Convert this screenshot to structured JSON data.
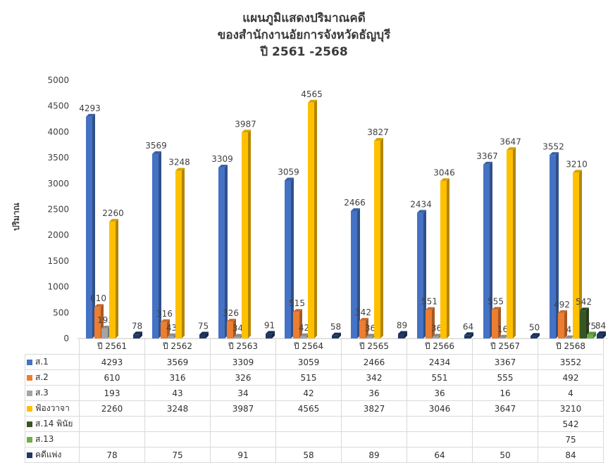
{
  "chart_data": {
    "type": "bar",
    "title_lines": [
      "แผนภูมิแสดงปริมาณคดี",
      "ของสำนักงานอัยการจังหวัดธัญบุรี",
      "ปี  2561 -2568"
    ],
    "ylabel": "ปริมาณ",
    "ylim": [
      0,
      5000
    ],
    "yticks": [
      0,
      500,
      1000,
      1500,
      2000,
      2500,
      3000,
      3500,
      4000,
      4500,
      5000
    ],
    "categories": [
      "ปี 2561",
      "ปี 2562",
      "ปี 2563",
      "ปี 2564",
      "ปี 2565",
      "ปี 2566",
      "ปี 2567",
      "ปี 2568"
    ],
    "series": [
      {
        "name": "ส.1",
        "color": "#4472C4",
        "values": [
          4293,
          3569,
          3309,
          3059,
          2466,
          2434,
          3367,
          3552
        ]
      },
      {
        "name": "ส.2",
        "color": "#ED7D31",
        "values": [
          610,
          316,
          326,
          515,
          342,
          551,
          555,
          492
        ]
      },
      {
        "name": "ส.3",
        "color": "#A5A5A5",
        "values": [
          193,
          43,
          34,
          42,
          36,
          36,
          16,
          4
        ]
      },
      {
        "name": "ฟ้องวาจา",
        "color": "#FFC000",
        "values": [
          2260,
          3248,
          3987,
          4565,
          3827,
          3046,
          3647,
          3210
        ]
      },
      {
        "name": "ส.14 พินัย",
        "color": "#375623",
        "values": [
          null,
          null,
          null,
          null,
          null,
          null,
          null,
          542
        ]
      },
      {
        "name": "ส.13",
        "color": "#70AD47",
        "values": [
          null,
          null,
          null,
          null,
          null,
          null,
          null,
          75
        ]
      },
      {
        "name": "คดีแพ่ง",
        "color": "#1F3864",
        "values": [
          78,
          75,
          91,
          58,
          89,
          64,
          50,
          84
        ]
      }
    ],
    "grid": false,
    "legend": "data-table"
  }
}
